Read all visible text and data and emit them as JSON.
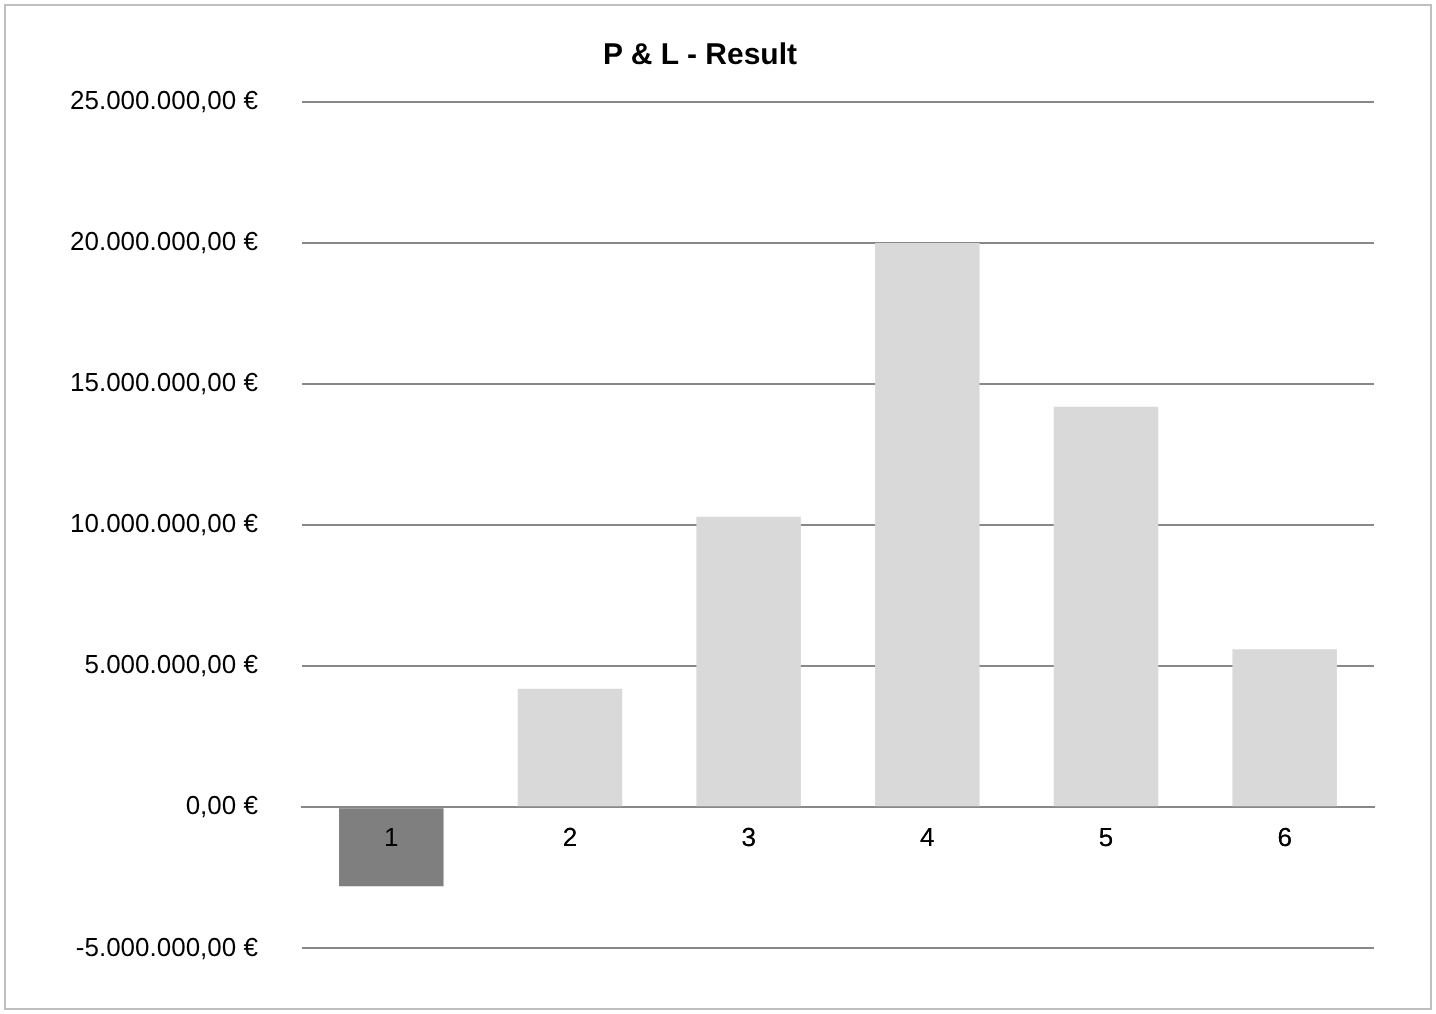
{
  "chart_data": {
    "type": "bar",
    "title": "P & L - Result",
    "categories": [
      "1",
      "2",
      "3",
      "4",
      "5",
      "6"
    ],
    "values": [
      -2800000,
      4200000,
      10300000,
      20000000,
      14200000,
      5600000
    ],
    "colors": [
      "#7f7f7f",
      "#d9d9d9",
      "#d9d9d9",
      "#d9d9d9",
      "#d9d9d9",
      "#d9d9d9"
    ],
    "ylim": [
      -5000000,
      25000000
    ],
    "yticks": [
      {
        "value": -5000000,
        "label": "-5.000.000,00 €"
      },
      {
        "value": 0,
        "label": "0,00 €"
      },
      {
        "value": 5000000,
        "label": "5.000.000,00 €"
      },
      {
        "value": 10000000,
        "label": "10.000.000,00 €"
      },
      {
        "value": 15000000,
        "label": "15.000.000,00 €"
      },
      {
        "value": 20000000,
        "label": "20.000.000,00 €"
      },
      {
        "value": 25000000,
        "label": "25.000.000,00 €"
      }
    ],
    "grid": "y",
    "legend": false
  }
}
